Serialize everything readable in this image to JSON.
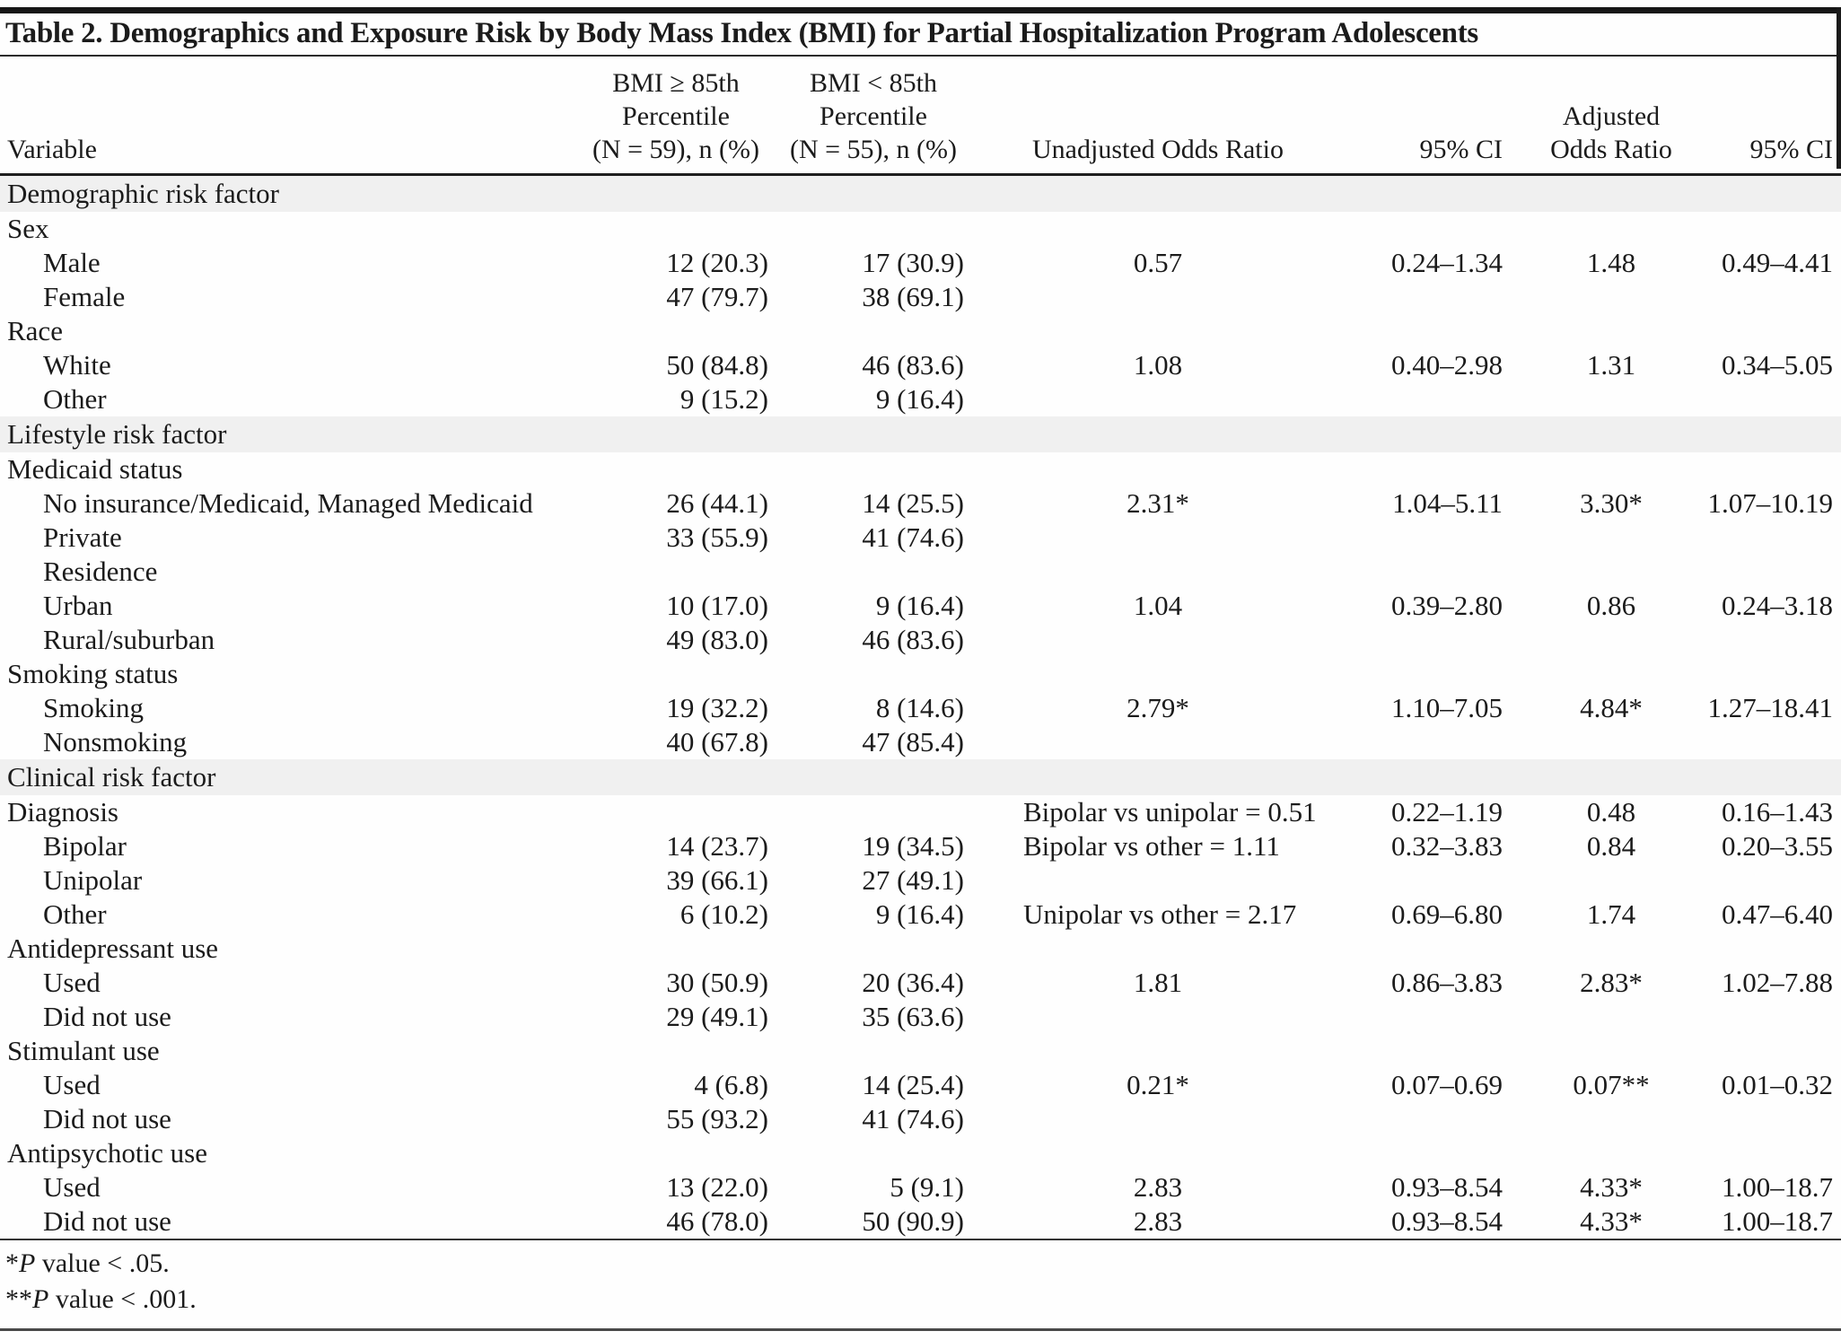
{
  "table": {
    "title": "Table 2. Demographics and Exposure Risk by Body Mass Index (BMI) for Partial Hospitalization Program Adolescents",
    "columns": [
      {
        "id": "variable",
        "label": "Variable"
      },
      {
        "id": "bmi_ge_85th",
        "label": "BMI ≥ 85th\nPercentile\n(N = 59), n (%)"
      },
      {
        "id": "bmi_lt_85th",
        "label": "BMI < 85th\nPercentile\n(N = 55), n (%)"
      },
      {
        "id": "unadjusted_odds_ratio",
        "label": "Unadjusted Odds Ratio"
      },
      {
        "id": "unadjusted_95_ci",
        "label": "95% CI"
      },
      {
        "id": "adjusted_odds_ratio",
        "label": "Adjusted\nOdds Ratio"
      },
      {
        "id": "adjusted_95_ci",
        "label": "95% CI"
      }
    ],
    "rows": [
      {
        "type": "section",
        "label": "Demographic risk factor"
      },
      {
        "type": "group",
        "label": "Sex"
      },
      {
        "type": "item",
        "label": "Male",
        "cells": [
          "12 (20.3)",
          "17 (30.9)",
          "0.57",
          "0.24–1.34",
          "1.48",
          "0.49–4.41"
        ]
      },
      {
        "type": "item",
        "label": "Female",
        "cells": [
          "47 (79.7)",
          "38 (69.1)",
          "",
          "",
          "",
          ""
        ]
      },
      {
        "type": "group",
        "label": "Race"
      },
      {
        "type": "item",
        "label": "White",
        "cells": [
          "50 (84.8)",
          "46 (83.6)",
          "1.08",
          "0.40–2.98",
          "1.31",
          "0.34–5.05"
        ]
      },
      {
        "type": "item",
        "label": "Other",
        "cells": [
          "9 (15.2)",
          "9 (16.4)",
          "",
          "",
          "",
          ""
        ]
      },
      {
        "type": "section",
        "label": "Lifestyle risk factor"
      },
      {
        "type": "group",
        "label": "Medicaid status"
      },
      {
        "type": "item",
        "label": "No insurance/Medicaid, Managed Medicaid",
        "cells": [
          "26 (44.1)",
          "14 (25.5)",
          "2.31*",
          "1.04–5.11",
          "3.30*",
          "1.07–10.19"
        ]
      },
      {
        "type": "item",
        "label": "Private",
        "cells": [
          "33 (55.9)",
          "41 (74.6)",
          "",
          "",
          "",
          ""
        ]
      },
      {
        "type": "item",
        "label": "Residence",
        "cells": [
          "",
          "",
          "",
          "",
          "",
          ""
        ]
      },
      {
        "type": "item",
        "label": "Urban",
        "cells": [
          "10 (17.0)",
          "9 (16.4)",
          "1.04",
          "0.39–2.80",
          "0.86",
          "0.24–3.18"
        ]
      },
      {
        "type": "item",
        "label": "Rural/suburban",
        "cells": [
          "49 (83.0)",
          "46 (83.6)",
          "",
          "",
          "",
          ""
        ]
      },
      {
        "type": "group",
        "label": "Smoking status"
      },
      {
        "type": "item",
        "label": "Smoking",
        "cells": [
          "19 (32.2)",
          "8 (14.6)",
          "2.79*",
          "1.10–7.05",
          "4.84*",
          "1.27–18.41"
        ]
      },
      {
        "type": "item",
        "label": "Nonsmoking",
        "cells": [
          "40 (67.8)",
          "47 (85.4)",
          "",
          "",
          "",
          ""
        ]
      },
      {
        "type": "section",
        "label": "Clinical risk factor"
      },
      {
        "type": "group",
        "label": "Diagnosis",
        "or_align": "left",
        "cells": [
          "",
          "",
          "Bipolar vs unipolar = 0.51",
          "0.22–1.19",
          "0.48",
          "0.16–1.43"
        ]
      },
      {
        "type": "item",
        "label": "Bipolar",
        "or_align": "left",
        "cells": [
          "14 (23.7)",
          "19 (34.5)",
          "Bipolar vs other = 1.11",
          "0.32–3.83",
          "0.84",
          "0.20–3.55"
        ]
      },
      {
        "type": "item",
        "label": "Unipolar",
        "cells": [
          "39 (66.1)",
          "27 (49.1)",
          "",
          "",
          "",
          ""
        ]
      },
      {
        "type": "item",
        "label": "Other",
        "or_align": "left",
        "cells": [
          "6 (10.2)",
          "9 (16.4)",
          "Unipolar vs other = 2.17",
          "0.69–6.80",
          "1.74",
          "0.47–6.40"
        ]
      },
      {
        "type": "group",
        "label": "Antidepressant use"
      },
      {
        "type": "item",
        "label": "Used",
        "cells": [
          "30 (50.9)",
          "20 (36.4)",
          "1.81",
          "0.86–3.83",
          "2.83*",
          "1.02–7.88"
        ]
      },
      {
        "type": "item",
        "label": "Did not use",
        "cells": [
          "29 (49.1)",
          "35 (63.6)",
          "",
          "",
          "",
          ""
        ]
      },
      {
        "type": "group",
        "label": "Stimulant use"
      },
      {
        "type": "item",
        "label": "Used",
        "cells": [
          "4 (6.8)",
          "14 (25.4)",
          "0.21*",
          "0.07–0.69",
          "0.07**",
          "0.01–0.32"
        ]
      },
      {
        "type": "item",
        "label": "Did not use",
        "cells": [
          "55 (93.2)",
          "41 (74.6)",
          "",
          "",
          "",
          ""
        ]
      },
      {
        "type": "group",
        "label": "Antipsychotic use"
      },
      {
        "type": "item",
        "label": "Used",
        "cells": [
          "13 (22.0)",
          "5 (9.1)",
          "2.83",
          "0.93–8.54",
          "4.33*",
          "1.00–18.7"
        ]
      },
      {
        "type": "item",
        "label": "Did not use",
        "cells": [
          "46 (78.0)",
          "50 (90.9)",
          "2.83",
          "0.93–8.54",
          "4.33*",
          "1.00–18.7"
        ]
      }
    ],
    "footnotes": [
      {
        "marker": "*",
        "term": "P",
        "rest": " value < .05."
      },
      {
        "marker": "**",
        "term": "P",
        "rest": " value < .001."
      }
    ]
  }
}
